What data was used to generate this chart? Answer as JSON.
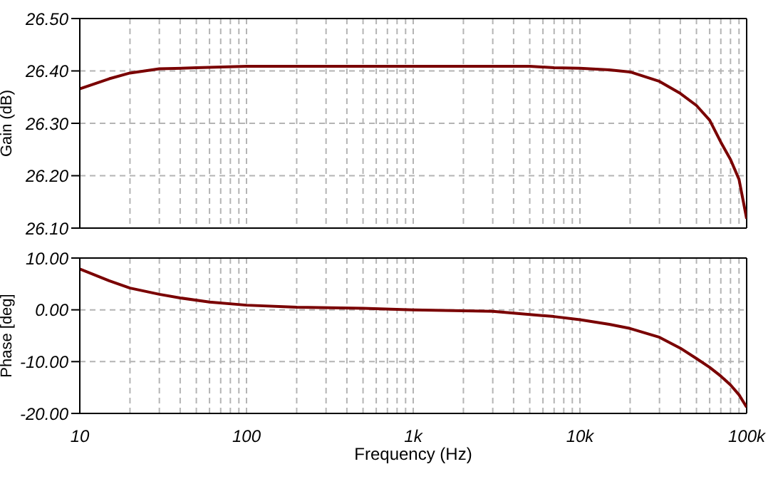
{
  "chart_data": [
    {
      "type": "line",
      "ylabel": "Gain (dB)",
      "log": "x",
      "grid": true,
      "tick_labels": "y",
      "marker": "none",
      "line_style": "solid",
      "x": [
        10,
        15,
        20,
        30,
        50,
        100,
        500,
        1000,
        5000,
        7000,
        10000,
        15000,
        20000,
        30000,
        40000,
        50000,
        60000,
        70000,
        80000,
        90000,
        100000
      ],
      "series": [
        {
          "color": "#7a0000",
          "values": [
            26.366,
            26.385,
            26.396,
            26.404,
            26.406,
            26.409,
            26.409,
            26.409,
            26.409,
            26.406,
            26.405,
            26.402,
            26.398,
            26.38,
            26.357,
            26.334,
            26.306,
            26.264,
            26.231,
            26.193,
            26.118
          ]
        }
      ],
      "xlim": [
        10,
        100000
      ],
      "xticks": [
        {
          "value": 10,
          "label": null
        },
        {
          "value": 20,
          "label": null
        },
        {
          "value": 30,
          "label": null
        },
        {
          "value": 40,
          "label": null
        },
        {
          "value": 50,
          "label": null
        },
        {
          "value": 60,
          "label": null
        },
        {
          "value": 70,
          "label": null
        },
        {
          "value": 80,
          "label": null
        },
        {
          "value": 90,
          "label": null
        },
        {
          "value": 100,
          "label": null
        },
        {
          "value": 200,
          "label": null
        },
        {
          "value": 300,
          "label": null
        },
        {
          "value": 400,
          "label": null
        },
        {
          "value": 500,
          "label": null
        },
        {
          "value": 600,
          "label": null
        },
        {
          "value": 700,
          "label": null
        },
        {
          "value": 800,
          "label": null
        },
        {
          "value": 900,
          "label": null
        },
        {
          "value": 1000,
          "label": null
        },
        {
          "value": 2000,
          "label": null
        },
        {
          "value": 3000,
          "label": null
        },
        {
          "value": 4000,
          "label": null
        },
        {
          "value": 5000,
          "label": null
        },
        {
          "value": 6000,
          "label": null
        },
        {
          "value": 7000,
          "label": null
        },
        {
          "value": 8000,
          "label": null
        },
        {
          "value": 9000,
          "label": null
        },
        {
          "value": 10000,
          "label": null
        },
        {
          "value": 20000,
          "label": null
        },
        {
          "value": 30000,
          "label": null
        },
        {
          "value": 40000,
          "label": null
        },
        {
          "value": 50000,
          "label": null
        },
        {
          "value": 60000,
          "label": null
        },
        {
          "value": 70000,
          "label": null
        },
        {
          "value": 80000,
          "label": null
        },
        {
          "value": 90000,
          "label": null
        },
        {
          "value": 100000,
          "label": null
        }
      ],
      "ylim": [
        26.1,
        26.5
      ],
      "yticks": [
        {
          "value": 26.1,
          "label": "26.10"
        },
        {
          "value": 26.2,
          "label": "26.20"
        },
        {
          "value": 26.3,
          "label": "26.30"
        },
        {
          "value": 26.4,
          "label": "26.40"
        },
        {
          "value": 26.5,
          "label": "26.50"
        }
      ]
    },
    {
      "type": "line",
      "xlabel": "Frequency (Hz)",
      "ylabel": "Phase [deg]",
      "log": "x",
      "grid": true,
      "marker": "none",
      "line_style": "solid",
      "x": [
        10,
        15,
        20,
        30,
        40,
        60,
        100,
        200,
        500,
        1000,
        3000,
        5000,
        7000,
        10000,
        15000,
        20000,
        30000,
        40000,
        50000,
        60000,
        70000,
        80000,
        90000,
        100000
      ],
      "series": [
        {
          "color": "#7a0000",
          "values": [
            7.9,
            5.6,
            4.2,
            3.0,
            2.3,
            1.5,
            0.9,
            0.5,
            0.3,
            0.0,
            -0.3,
            -0.9,
            -1.3,
            -1.9,
            -2.8,
            -3.6,
            -5.3,
            -7.4,
            -9.4,
            -11.1,
            -12.8,
            -14.5,
            -16.4,
            -18.8
          ]
        }
      ],
      "xlim": [
        10,
        100000
      ],
      "xticks": [
        {
          "value": 10,
          "label": "10"
        },
        {
          "value": 20,
          "label": null
        },
        {
          "value": 30,
          "label": null
        },
        {
          "value": 40,
          "label": null
        },
        {
          "value": 50,
          "label": null
        },
        {
          "value": 60,
          "label": null
        },
        {
          "value": 70,
          "label": null
        },
        {
          "value": 80,
          "label": null
        },
        {
          "value": 90,
          "label": null
        },
        {
          "value": 100,
          "label": "100"
        },
        {
          "value": 200,
          "label": null
        },
        {
          "value": 300,
          "label": null
        },
        {
          "value": 400,
          "label": null
        },
        {
          "value": 500,
          "label": null
        },
        {
          "value": 600,
          "label": null
        },
        {
          "value": 700,
          "label": null
        },
        {
          "value": 800,
          "label": null
        },
        {
          "value": 900,
          "label": null
        },
        {
          "value": 1000,
          "label": "1k"
        },
        {
          "value": 2000,
          "label": null
        },
        {
          "value": 3000,
          "label": null
        },
        {
          "value": 4000,
          "label": null
        },
        {
          "value": 5000,
          "label": null
        },
        {
          "value": 6000,
          "label": null
        },
        {
          "value": 7000,
          "label": null
        },
        {
          "value": 8000,
          "label": null
        },
        {
          "value": 9000,
          "label": null
        },
        {
          "value": 10000,
          "label": "10k"
        },
        {
          "value": 20000,
          "label": null
        },
        {
          "value": 30000,
          "label": null
        },
        {
          "value": 40000,
          "label": null
        },
        {
          "value": 50000,
          "label": null
        },
        {
          "value": 60000,
          "label": null
        },
        {
          "value": 70000,
          "label": null
        },
        {
          "value": 80000,
          "label": null
        },
        {
          "value": 90000,
          "label": null
        },
        {
          "value": 100000,
          "label": "100k"
        }
      ],
      "ylim": [
        -20,
        10
      ],
      "yticks": [
        {
          "value": -20,
          "label": "-20.00"
        },
        {
          "value": -10,
          "label": "-10.00"
        },
        {
          "value": 0,
          "label": "0.00"
        },
        {
          "value": 10,
          "label": "10.00"
        }
      ]
    }
  ]
}
